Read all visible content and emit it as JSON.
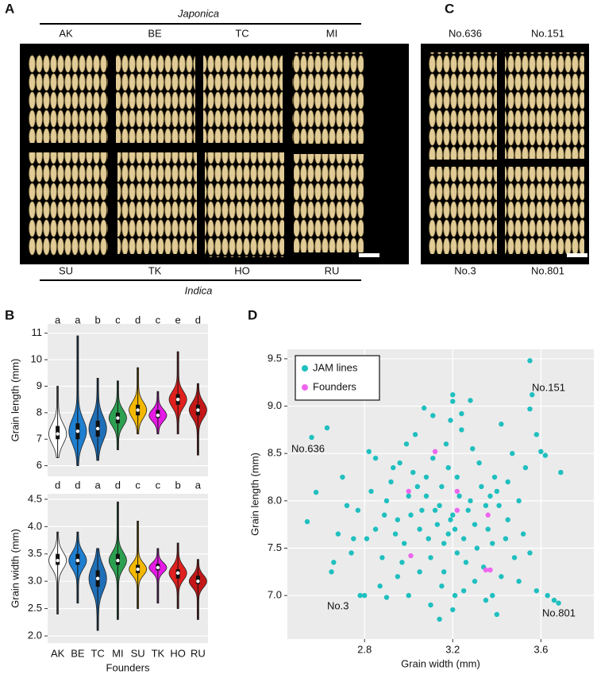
{
  "panel_labels": [
    "A",
    "B",
    "C",
    "D"
  ],
  "figure_a": {
    "group_top": "Japonica",
    "group_bottom": "Indica",
    "top_labels": [
      "AK",
      "BE",
      "TC",
      "MI"
    ],
    "bottom_labels": [
      "SU",
      "TK",
      "HO",
      "RU"
    ]
  },
  "figure_c": {
    "top_labels": [
      "No.636",
      "No.151"
    ],
    "bottom_labels": [
      "No.3",
      "No.801"
    ]
  },
  "chart_data": [
    {
      "type": "violin",
      "ylabel": "Grain length (mm)",
      "colors": [
        "#ffffff",
        "#1f7fd0",
        "#1f6fb8",
        "#2ca050",
        "#f5b800",
        "#e619e6",
        "#e0201e",
        "#c41818"
      ],
      "median": [
        7.2,
        7.3,
        7.4,
        7.8,
        8.1,
        7.9,
        8.5,
        8.1
      ],
      "q1": [
        7.0,
        7.0,
        7.1,
        7.6,
        7.9,
        7.8,
        8.3,
        7.9
      ],
      "q3": [
        7.5,
        7.6,
        7.7,
        8.0,
        8.3,
        8.1,
        8.7,
        8.3
      ],
      "min": [
        6.3,
        6.0,
        6.2,
        6.6,
        7.2,
        7.2,
        7.2,
        6.4
      ],
      "max": [
        9.0,
        10.9,
        9.3,
        9.2,
        9.7,
        8.8,
        10.3,
        9.1
      ],
      "letters": [
        "a",
        "a",
        "b",
        "c",
        "d",
        "c",
        "e",
        "d"
      ],
      "ylim": [
        5.6,
        11.35
      ],
      "yticks": [
        6,
        7,
        8,
        9,
        10,
        11
      ],
      "grid": true
    },
    {
      "type": "violin",
      "ylabel": "Grain  width (mm)",
      "xlabel": "Founders",
      "categories": [
        "AK",
        "BE",
        "TC",
        "MI",
        "SU",
        "TK",
        "HO",
        "RU"
      ],
      "colors": [
        "#ffffff",
        "#1f7fd0",
        "#1f6fb8",
        "#2ca050",
        "#f5b800",
        "#e619e6",
        "#e0201e",
        "#c41818"
      ],
      "median": [
        3.38,
        3.38,
        3.05,
        3.38,
        3.22,
        3.25,
        3.15,
        3.0
      ],
      "q1": [
        3.3,
        3.3,
        2.9,
        3.3,
        3.15,
        3.2,
        3.05,
        2.95
      ],
      "q3": [
        3.5,
        3.5,
        3.2,
        3.5,
        3.3,
        3.32,
        3.22,
        3.1
      ],
      "min": [
        2.4,
        2.6,
        2.1,
        2.3,
        2.5,
        2.6,
        2.5,
        2.3
      ],
      "max": [
        3.9,
        3.9,
        3.6,
        4.45,
        4.1,
        3.6,
        3.7,
        3.4
      ],
      "letters": [
        "d",
        "d",
        "a",
        "d",
        "c",
        "c",
        "b",
        "a"
      ],
      "ylim": [
        1.87,
        4.6
      ],
      "yticks": [
        {
          "value": 2,
          "label": "2.0"
        },
        2.5,
        {
          "value": 3,
          "label": "3.0"
        },
        3.5,
        {
          "value": 4,
          "label": "4.0"
        },
        4.5
      ],
      "grid": true
    },
    {
      "type": "scatter",
      "xlabel": "Grain width (mm)",
      "ylabel": "Grain length (mm)",
      "xlim": [
        2.45,
        3.84
      ],
      "ylim": [
        6.54,
        9.6
      ],
      "xticks": [
        2.8,
        3.2,
        3.6
      ],
      "yticks": [
        {
          "value": 7,
          "label": "7.0"
        },
        7.5,
        {
          "value": 8,
          "label": "8.0"
        },
        8.5,
        {
          "value": 9,
          "label": "9.0"
        },
        9.5
      ],
      "grid": true,
      "legend": "top-left",
      "annotations": [
        "No.151",
        "No.636",
        "No.3",
        "No.801"
      ],
      "series": [
        {
          "name": "JAM lines",
          "color": "#1fbfbf",
          "x": [
            3.55,
            3.56,
            3.55,
            3.69,
            3.68,
            2.56,
            2.54,
            2.63,
            2.65,
            2.78,
            2.8,
            3.2,
            3.2,
            3.28,
            3.07,
            3.11,
            3.24,
            3.42,
            3.58,
            3.6,
            2.82,
            2.85,
            2.7,
            2.72,
            2.68,
            2.66,
            2.58,
            2.75,
            2.77,
            2.9,
            2.92,
            2.95,
            2.98,
            3.02,
            3.05,
            3.08,
            3.1,
            3.12,
            3.15,
            3.18,
            3.2,
            3.22,
            3.25,
            3.28,
            3.3,
            3.32,
            3.35,
            3.38,
            3.4,
            3.45,
            3.48,
            3.5,
            3.52,
            3.55,
            3.45,
            3.42,
            3.38,
            3.35,
            3.3,
            3.25,
            3.2,
            3.15,
            3.1,
            3.05,
            3.0,
            2.95,
            2.9,
            2.88,
            2.85,
            2.83,
            3.13,
            3.14,
            3.16,
            3.18,
            3.19,
            3.21,
            3.23,
            3.17,
            3.11,
            3.09,
            3.06,
            3.04,
            3.01,
            2.99,
            2.97,
            2.94,
            2.93,
            3.03,
            3.26,
            3.29,
            3.31,
            3.33,
            3.36,
            3.39,
            3.41,
            3.44,
            3.47,
            3.27,
            3.24,
            3.19,
            2.87,
            2.96,
            3.0,
            3.08,
            3.16,
            3.22,
            3.34,
            3.4,
            3.5,
            3.58,
            3.62,
            3.63,
            3.66,
            3.53,
            2.74,
            2.81,
            2.89,
            3.14,
            3.21,
            3.37
          ],
          "y": [
            9.48,
            9.12,
            8.97,
            8.3,
            6.92,
            8.67,
            7.78,
            8.77,
            7.25,
            7.0,
            7.0,
            9.12,
            9.05,
            9.06,
            8.98,
            8.9,
            8.92,
            8.81,
            8.7,
            8.52,
            8.52,
            8.45,
            8.25,
            7.95,
            7.65,
            7.35,
            8.09,
            7.6,
            7.9,
            8.0,
            8.2,
            7.8,
            7.55,
            8.3,
            7.7,
            8.05,
            7.4,
            7.9,
            8.15,
            7.65,
            7.85,
            8.25,
            7.6,
            8.0,
            7.75,
            8.4,
            7.95,
            7.55,
            8.1,
            7.8,
            7.4,
            8.0,
            7.65,
            7.45,
            8.2,
            7.2,
            7.0,
            6.95,
            7.15,
            7.05,
            6.85,
            7.1,
            6.9,
            7.25,
            7.0,
            7.2,
            6.98,
            7.4,
            7.7,
            8.1,
            7.75,
            7.95,
            7.55,
            8.35,
            7.8,
            7.7,
            8.05,
            8.6,
            8.45,
            7.6,
            7.9,
            8.15,
            7.85,
            8.6,
            7.35,
            7.65,
            8.35,
            8.7,
            7.35,
            8.55,
            7.5,
            8.15,
            7.7,
            8.25,
            7.95,
            7.6,
            8.5,
            7.9,
            8.75,
            8.85,
            7.1,
            8.4,
            8.05,
            8.25,
            7.25,
            7.45,
            7.3,
            6.8,
            7.15,
            7.05,
            8.48,
            7.0,
            6.95,
            8.35,
            7.45,
            7.6,
            7.85,
            6.75,
            7.0,
            8.05
          ]
        },
        {
          "name": "Founders",
          "color": "#ee66ee",
          "x": [
            3.0,
            3.12,
            3.22,
            3.22,
            3.36,
            3.01,
            3.35,
            3.37
          ],
          "y": [
            8.1,
            8.52,
            8.1,
            7.9,
            7.85,
            7.42,
            7.27,
            7.27
          ]
        }
      ]
    }
  ]
}
